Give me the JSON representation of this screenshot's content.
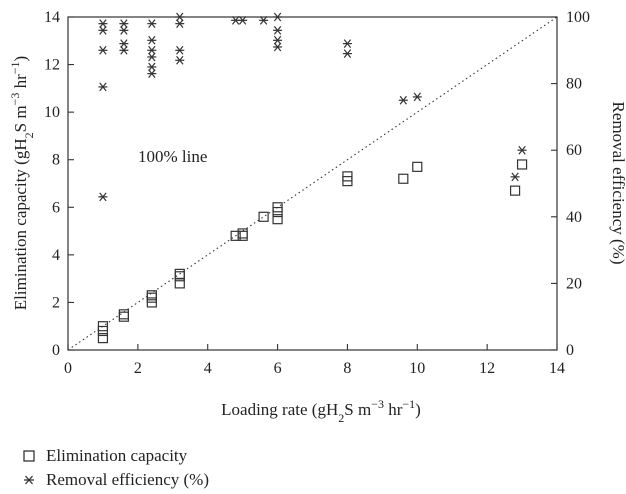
{
  "chart_data": {
    "type": "scatter",
    "x_axis": {
      "label_main": "Loading rate (gH",
      "label_sub1": "2",
      "label_mid": "S m",
      "label_sup": "−3",
      "label_end": " hr",
      "label_sup2": "−1",
      "label_close": ")",
      "range": [
        0,
        14
      ],
      "ticks": [
        "0",
        "2",
        "4",
        "6",
        "8",
        "10",
        "12",
        "14"
      ]
    },
    "y_axis_left": {
      "label_main": "Elimination capacity (gH",
      "label_sub1": "2",
      "label_mid": "S m",
      "label_sup": "−3",
      "label_end": " hr",
      "label_sup2": "−1",
      "label_close": ")",
      "range": [
        0,
        14
      ],
      "ticks": [
        "0",
        "2",
        "4",
        "6",
        "8",
        "10",
        "12",
        "14"
      ]
    },
    "y_axis_right": {
      "label": "Removal efficiency (%)",
      "range": [
        0,
        100
      ],
      "ticks": [
        "0",
        "20",
        "40",
        "60",
        "80",
        "100"
      ]
    },
    "annotation": "100% line",
    "grid": false,
    "legend_position": "below",
    "series": [
      {
        "name": "Elimination capacity",
        "marker": "square",
        "axis": "left",
        "points": [
          [
            1.0,
            0.5
          ],
          [
            1.0,
            0.8
          ],
          [
            1.0,
            1.0
          ],
          [
            1.6,
            1.4
          ],
          [
            1.6,
            1.5
          ],
          [
            2.4,
            2.0
          ],
          [
            2.4,
            2.2
          ],
          [
            2.4,
            2.3
          ],
          [
            3.2,
            2.8
          ],
          [
            3.2,
            3.1
          ],
          [
            3.2,
            3.2
          ],
          [
            4.8,
            4.8
          ],
          [
            5.0,
            4.8
          ],
          [
            5.0,
            4.9
          ],
          [
            5.6,
            5.6
          ],
          [
            6.0,
            5.5
          ],
          [
            6.0,
            5.8
          ],
          [
            6.0,
            6.0
          ],
          [
            8.0,
            7.1
          ],
          [
            8.0,
            7.3
          ],
          [
            9.6,
            7.2
          ],
          [
            10.0,
            7.7
          ],
          [
            12.8,
            6.7
          ],
          [
            13.0,
            7.8
          ]
        ]
      },
      {
        "name": "Removal efficiency (%)",
        "marker": "star",
        "axis": "right",
        "points": [
          [
            1.0,
            46
          ],
          [
            1.0,
            79
          ],
          [
            1.0,
            90
          ],
          [
            1.0,
            96
          ],
          [
            1.0,
            98
          ],
          [
            1.6,
            90
          ],
          [
            1.6,
            92
          ],
          [
            1.6,
            96
          ],
          [
            1.6,
            98
          ],
          [
            2.4,
            83
          ],
          [
            2.4,
            85
          ],
          [
            2.4,
            88
          ],
          [
            2.4,
            90
          ],
          [
            2.4,
            93
          ],
          [
            2.4,
            98
          ],
          [
            3.2,
            87
          ],
          [
            3.2,
            90
          ],
          [
            3.2,
            98
          ],
          [
            3.2,
            100
          ],
          [
            4.8,
            99
          ],
          [
            5.0,
            99
          ],
          [
            5.6,
            99
          ],
          [
            6.0,
            91
          ],
          [
            6.0,
            93
          ],
          [
            6.0,
            96
          ],
          [
            6.0,
            100
          ],
          [
            8.0,
            89
          ],
          [
            8.0,
            92
          ],
          [
            9.6,
            75
          ],
          [
            10.0,
            76
          ],
          [
            12.8,
            52
          ],
          [
            13.0,
            60
          ]
        ]
      }
    ]
  },
  "legend": {
    "items": [
      {
        "label": "Elimination capacity",
        "marker": "square"
      },
      {
        "label": "Removal efficiency (%)",
        "marker": "star"
      }
    ]
  }
}
